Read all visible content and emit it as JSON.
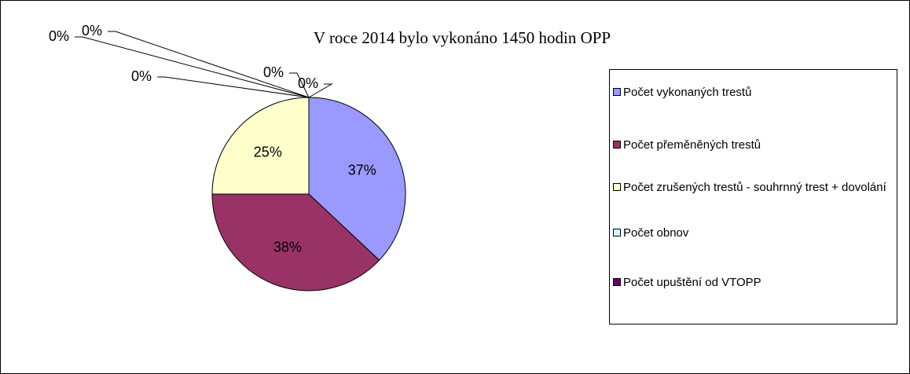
{
  "chart_data": {
    "type": "pie",
    "title": "V roce 2014 bylo vykonáno 1450 hodin OPP",
    "categories": [
      "Počet vykonaných trestů",
      "Počet přeměněných trestů",
      "Počet zrušených trestů - souhrnný trest + dovolání",
      "Počet obnov",
      "Počet upuštění od VTOPP",
      null,
      null,
      null
    ],
    "values": [
      37,
      38,
      25,
      0,
      0,
      0,
      0,
      0
    ],
    "value_labels": [
      "37%",
      "38%",
      "25%",
      "0%",
      "0%",
      "0%",
      "0%",
      "0%"
    ],
    "colors": [
      "#9999ff",
      "#993366",
      "#ffffcc",
      "#ccffff",
      "#660066",
      "#ff8080",
      "#0066cc",
      "#ccccff"
    ],
    "legend": "right"
  }
}
